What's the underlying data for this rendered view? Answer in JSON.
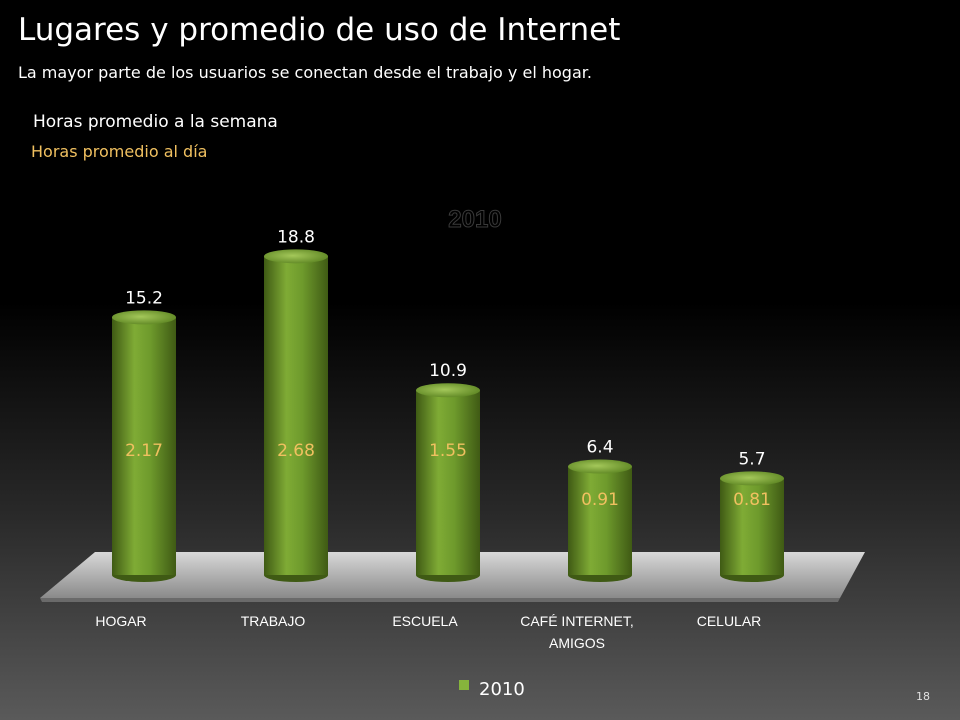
{
  "slide": {
    "title": "Lugares y promedio de uso de Internet",
    "subtitle": "La mayor parte de los usuarios se conectan desde el trabajo y el hogar.",
    "legend_week": "Horas promedio a la semana",
    "legend_day": "Horas promedio al día",
    "page_number": "18"
  },
  "colors": {
    "bar": "#6e9a2c",
    "bar_light": "#9cc24e",
    "bar_dark": "#3f5a14",
    "daily_label": "#f0c060",
    "weekly_label": "#ffffff",
    "legend_swatch": "#86b43c"
  },
  "chart_data": {
    "type": "bar",
    "title": "2010",
    "categories": [
      "HOGAR",
      "TRABAJO",
      "ESCUELA",
      "CAFÉ INTERNET, AMIGOS",
      "CELULAR"
    ],
    "series": [
      {
        "name": "2010",
        "values": [
          15.2,
          18.8,
          10.9,
          6.4,
          5.7
        ]
      }
    ],
    "daily_values": [
      2.17,
      2.68,
      1.55,
      0.91,
      0.81
    ],
    "ylim": [
      0,
      20
    ],
    "grid": false,
    "legend": "bottom"
  }
}
